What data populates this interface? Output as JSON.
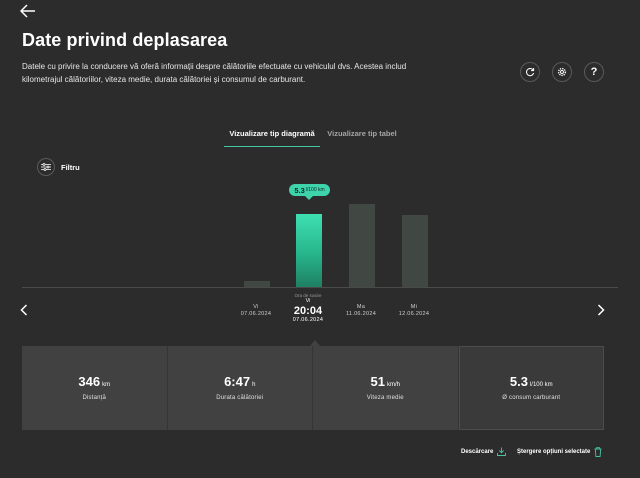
{
  "page": {
    "title": "Date privind deplasarea",
    "description": "Datele cu privire la conducere vă oferă informații despre călătoriile efectuate cu vehiculul dvs. Acestea includ kilometrajul călătoriilor, viteza medie, durata călătoriei și consumul de carburant."
  },
  "tabs": [
    {
      "label": "Vizualizare tip diagramă",
      "active": true
    },
    {
      "label": "Vizualizare tip tabel",
      "active": false
    }
  ],
  "filter": {
    "label": "Filtru"
  },
  "help_label": "?",
  "tooltip": {
    "value": "5.3",
    "unit": "l/100 km"
  },
  "chart_data": {
    "type": "bar",
    "categories": [
      "Vi 07.06.2024",
      "Vi 07.06.2024 20:04",
      "Ma 11.06.2024",
      "Mi 12.06.2024",
      "Mi 12.06.2024"
    ],
    "values": [
      0.4,
      5.3,
      6.0,
      5.2,
      0
    ],
    "selected_index": 1,
    "colors": {
      "selected": "#3ee0b2",
      "other": "#414743",
      "accent": "#47c3a2"
    }
  },
  "x_labels": [
    {
      "day": "Vi",
      "date": "07.06.2024"
    },
    {
      "day": "Ma",
      "date": "11.06.2024"
    },
    {
      "day": "Mi",
      "date": "12.06.2024"
    }
  ],
  "x_selected": {
    "label": "Ora de sosire",
    "day": "Vi",
    "time": "20:04",
    "date": "07.06.2024"
  },
  "stats": [
    {
      "value": "346",
      "unit": "km",
      "label": "Distanță"
    },
    {
      "value": "6:47",
      "unit": "h",
      "label": "Durata călătoriei"
    },
    {
      "value": "51",
      "unit": "km/h",
      "label": "Viteza medie"
    },
    {
      "value": "5.3",
      "unit": "l/100 km",
      "label": "Ø consum carburant"
    }
  ],
  "footer": {
    "download": "Descărcare",
    "delete": "Ștergere opțiuni selectate"
  },
  "icons": {
    "back": "arrow-left-icon",
    "refresh": "refresh-icon",
    "settings": "gear-icon",
    "help": "question-icon",
    "filter": "sliders-icon",
    "prev": "chevron-left-icon",
    "next": "chevron-right-icon",
    "download": "download-icon",
    "delete": "trash-icon"
  }
}
